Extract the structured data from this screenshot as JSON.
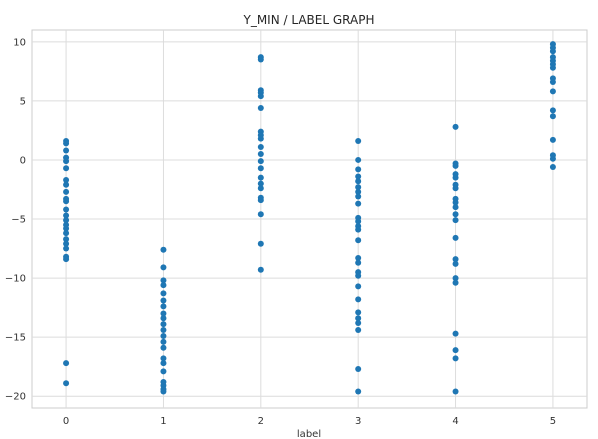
{
  "chart_data": {
    "type": "scatter",
    "title": "Y_MIN / LABEL GRAPH",
    "xlabel": "label",
    "ylabel": "",
    "xlim": [
      -0.35,
      5.35
    ],
    "ylim": [
      -21,
      11
    ],
    "xticks": [
      0,
      1,
      2,
      3,
      4,
      5
    ],
    "yticks": [
      -20,
      -15,
      -10,
      -5,
      0,
      5,
      10
    ],
    "grid": true,
    "marker_color": "#1f77b4",
    "series": [
      {
        "points": [
          [
            0,
            1.6
          ],
          [
            0,
            1.4
          ],
          [
            0,
            0.8
          ],
          [
            0,
            0.2
          ],
          [
            0,
            -0.1
          ],
          [
            0,
            -0.7
          ],
          [
            0,
            -1.7
          ],
          [
            0,
            -2.1
          ],
          [
            0,
            -2.7
          ],
          [
            0,
            -3.3
          ],
          [
            0,
            -3.5
          ],
          [
            0,
            -4.2
          ],
          [
            0,
            -4.7
          ],
          [
            0,
            -5.1
          ],
          [
            0,
            -5.5
          ],
          [
            0,
            -5.8
          ],
          [
            0,
            -6.2
          ],
          [
            0,
            -6.7
          ],
          [
            0,
            -7.1
          ],
          [
            0,
            -7.5
          ],
          [
            0,
            -8.2
          ],
          [
            0,
            -8.4
          ],
          [
            0,
            -17.2
          ],
          [
            0,
            -18.9
          ],
          [
            1,
            -7.6
          ],
          [
            1,
            -9.1
          ],
          [
            1,
            -10.2
          ],
          [
            1,
            -10.6
          ],
          [
            1,
            -11.3
          ],
          [
            1,
            -11.9
          ],
          [
            1,
            -12.4
          ],
          [
            1,
            -13.0
          ],
          [
            1,
            -13.4
          ],
          [
            1,
            -13.9
          ],
          [
            1,
            -14.4
          ],
          [
            1,
            -14.9
          ],
          [
            1,
            -15.4
          ],
          [
            1,
            -15.9
          ],
          [
            1,
            -16.8
          ],
          [
            1,
            -17.2
          ],
          [
            1,
            -17.9
          ],
          [
            1,
            -18.8
          ],
          [
            1,
            -19.1
          ],
          [
            1,
            -19.4
          ],
          [
            1,
            -19.6
          ],
          [
            2,
            8.7
          ],
          [
            2,
            8.5
          ],
          [
            2,
            5.9
          ],
          [
            2,
            5.7
          ],
          [
            2,
            5.4
          ],
          [
            2,
            4.4
          ],
          [
            2,
            2.4
          ],
          [
            2,
            2.1
          ],
          [
            2,
            1.8
          ],
          [
            2,
            1.1
          ],
          [
            2,
            0.5
          ],
          [
            2,
            -0.1
          ],
          [
            2,
            -0.7
          ],
          [
            2,
            -1.5
          ],
          [
            2,
            -2.0
          ],
          [
            2,
            -2.4
          ],
          [
            2,
            -3.2
          ],
          [
            2,
            -3.4
          ],
          [
            2,
            -4.6
          ],
          [
            2,
            -7.1
          ],
          [
            2,
            -9.3
          ],
          [
            3,
            1.6
          ],
          [
            3,
            0.0
          ],
          [
            3,
            -0.8
          ],
          [
            3,
            -1.4
          ],
          [
            3,
            -1.8
          ],
          [
            3,
            -2.3
          ],
          [
            3,
            -2.7
          ],
          [
            3,
            -3.1
          ],
          [
            3,
            -3.7
          ],
          [
            3,
            -4.9
          ],
          [
            3,
            -5.2
          ],
          [
            3,
            -5.6
          ],
          [
            3,
            -5.9
          ],
          [
            3,
            -6.8
          ],
          [
            3,
            -8.3
          ],
          [
            3,
            -8.7
          ],
          [
            3,
            -9.5
          ],
          [
            3,
            -9.8
          ],
          [
            3,
            -10.7
          ],
          [
            3,
            -11.8
          ],
          [
            3,
            -12.9
          ],
          [
            3,
            -13.4
          ],
          [
            3,
            -13.8
          ],
          [
            3,
            -14.4
          ],
          [
            3,
            -17.7
          ],
          [
            3,
            -19.6
          ],
          [
            4,
            2.8
          ],
          [
            4,
            -0.3
          ],
          [
            4,
            -0.5
          ],
          [
            4,
            -1.2
          ],
          [
            4,
            -1.5
          ],
          [
            4,
            -2.1
          ],
          [
            4,
            -2.4
          ],
          [
            4,
            -3.3
          ],
          [
            4,
            -3.6
          ],
          [
            4,
            -4.0
          ],
          [
            4,
            -4.6
          ],
          [
            4,
            -5.1
          ],
          [
            4,
            -6.6
          ],
          [
            4,
            -8.4
          ],
          [
            4,
            -8.8
          ],
          [
            4,
            -10.0
          ],
          [
            4,
            -10.4
          ],
          [
            4,
            -14.7
          ],
          [
            4,
            -16.1
          ],
          [
            4,
            -16.8
          ],
          [
            4,
            -19.6
          ],
          [
            5,
            9.8
          ],
          [
            5,
            9.5
          ],
          [
            5,
            9.2
          ],
          [
            5,
            8.7
          ],
          [
            5,
            8.4
          ],
          [
            5,
            8.1
          ],
          [
            5,
            7.8
          ],
          [
            5,
            6.9
          ],
          [
            5,
            6.6
          ],
          [
            5,
            5.8
          ],
          [
            5,
            4.2
          ],
          [
            5,
            3.7
          ],
          [
            5,
            1.7
          ],
          [
            5,
            0.4
          ],
          [
            5,
            0.1
          ],
          [
            5,
            -0.6
          ]
        ]
      }
    ]
  }
}
